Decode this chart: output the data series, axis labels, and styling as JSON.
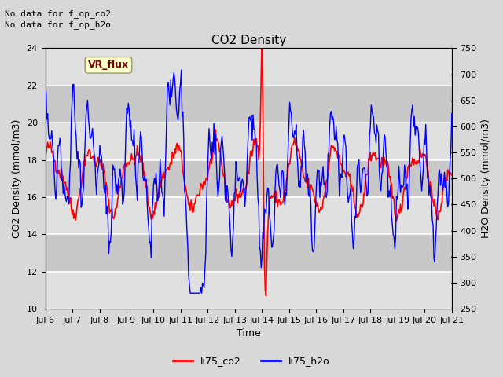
{
  "title": "CO2 Density",
  "xlabel": "Time",
  "ylabel_left": "CO2 Density (mmol/m3)",
  "ylabel_right": "H2O Density (mmol/m3)",
  "ylim_left": [
    10,
    24
  ],
  "ylim_right": [
    250,
    750
  ],
  "yticks_left": [
    10,
    12,
    14,
    16,
    18,
    20,
    22,
    24
  ],
  "yticks_right": [
    250,
    300,
    350,
    400,
    450,
    500,
    550,
    600,
    650,
    700,
    750
  ],
  "xtick_labels": [
    "Jul 6",
    "Jul 7",
    "Jul 8",
    "Jul 9",
    "Jul 10",
    "Jul 11",
    "Jul 12",
    "Jul 13",
    "Jul 14",
    "Jul 15",
    "Jul 16",
    "Jul 17",
    "Jul 18",
    "Jul 19",
    "Jul 20",
    "Jul 21"
  ],
  "top_left_text_1": "No data for f_op_co2",
  "top_left_text_2": "No data for f_op_h2o",
  "legend_box_text": "VR_flux",
  "legend_box_color": "#ffffcc",
  "legend_box_text_color": "#800000",
  "color_co2": "#ff0000",
  "color_h2o": "#0000ff",
  "figure_bg_color": "#d8d8d8",
  "plot_bg_color": "#c8c8c8",
  "band_light_color": "#e0e0e0",
  "band_dark_color": "#c8c8c8",
  "grid_color": "#ffffff",
  "legend_labels": [
    "li75_co2",
    "li75_h2o"
  ],
  "figsize": [
    6.4,
    4.8
  ],
  "dpi": 100
}
